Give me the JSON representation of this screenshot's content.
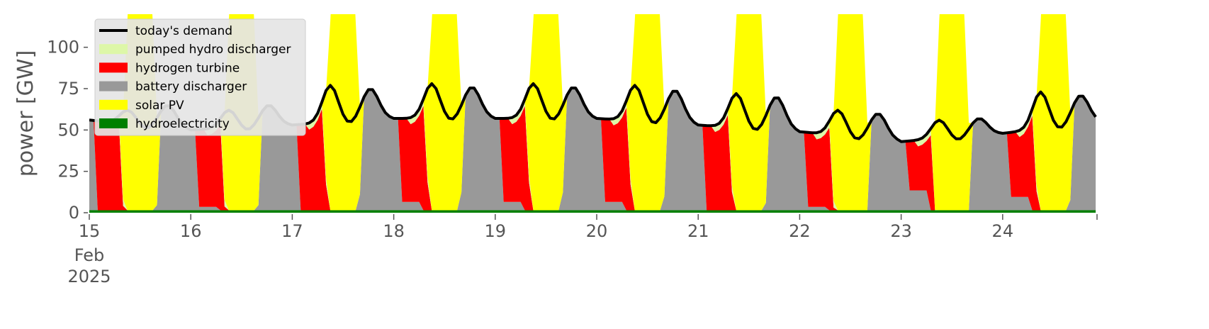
{
  "chart_data": {
    "type": "area",
    "ylabel": "power [GW]",
    "ylim": [
      0,
      120
    ],
    "xlim_days": [
      15,
      24.93
    ],
    "y_ticks": [
      "0",
      "25",
      "50",
      "75",
      "100"
    ],
    "x_ticks": [
      {
        "day": 15,
        "label": "15",
        "sub1": "Feb",
        "sub2": "2025"
      },
      {
        "day": 16,
        "label": "16"
      },
      {
        "day": 17,
        "label": "17"
      },
      {
        "day": 18,
        "label": "18"
      },
      {
        "day": 19,
        "label": "19"
      },
      {
        "day": 20,
        "label": "20"
      },
      {
        "day": 21,
        "label": "21"
      },
      {
        "day": 22,
        "label": "22"
      },
      {
        "day": 23,
        "label": "23"
      },
      {
        "day": 24,
        "label": "24"
      }
    ],
    "legend_position": "top-left",
    "legend": [
      {
        "name": "today's demand",
        "color": "#000000",
        "kind": "line"
      },
      {
        "name": "pumped hydro discharger",
        "color": "#ddf7a8",
        "kind": "area"
      },
      {
        "name": "hydrogen turbine",
        "color": "#ff0000",
        "kind": "area"
      },
      {
        "name": "battery discharger",
        "color": "#999999",
        "kind": "area"
      },
      {
        "name": "solar PV",
        "color": "#ffff00",
        "kind": "area"
      },
      {
        "name": "hydroelectricity",
        "color": "#008000",
        "kind": "area"
      }
    ],
    "daily_demand_GW": [
      {
        "night": 56,
        "morning_peak": 62,
        "evening_peak": 65,
        "midnight": 50
      },
      {
        "night": 50,
        "morning_peak": 62,
        "evening_peak": 65,
        "midnight": 53
      },
      {
        "night": 53,
        "morning_peak": 77,
        "evening_peak": 75,
        "midnight": 57
      },
      {
        "night": 57,
        "morning_peak": 78,
        "evening_peak": 76,
        "midnight": 57
      },
      {
        "night": 57,
        "morning_peak": 78,
        "evening_peak": 76,
        "midnight": 57
      },
      {
        "night": 57,
        "morning_peak": 77,
        "evening_peak": 74,
        "midnight": 53
      },
      {
        "night": 53,
        "morning_peak": 72,
        "evening_peak": 70,
        "midnight": 49
      },
      {
        "night": 49,
        "morning_peak": 62,
        "evening_peak": 60,
        "midnight": 43
      },
      {
        "night": 43,
        "morning_peak": 56,
        "evening_peak": 57,
        "midnight": 48
      },
      {
        "night": 48,
        "morning_peak": 73,
        "evening_peak": 71,
        "midnight": 55
      }
    ],
    "daily_hydrogen_floor_GW": [
      0,
      2,
      0,
      5,
      5,
      5,
      0,
      2,
      12,
      8
    ],
    "hydro_base_GW": 1.5,
    "solar_peak_GW": 120,
    "pumped_hydro_GW": 4
  }
}
